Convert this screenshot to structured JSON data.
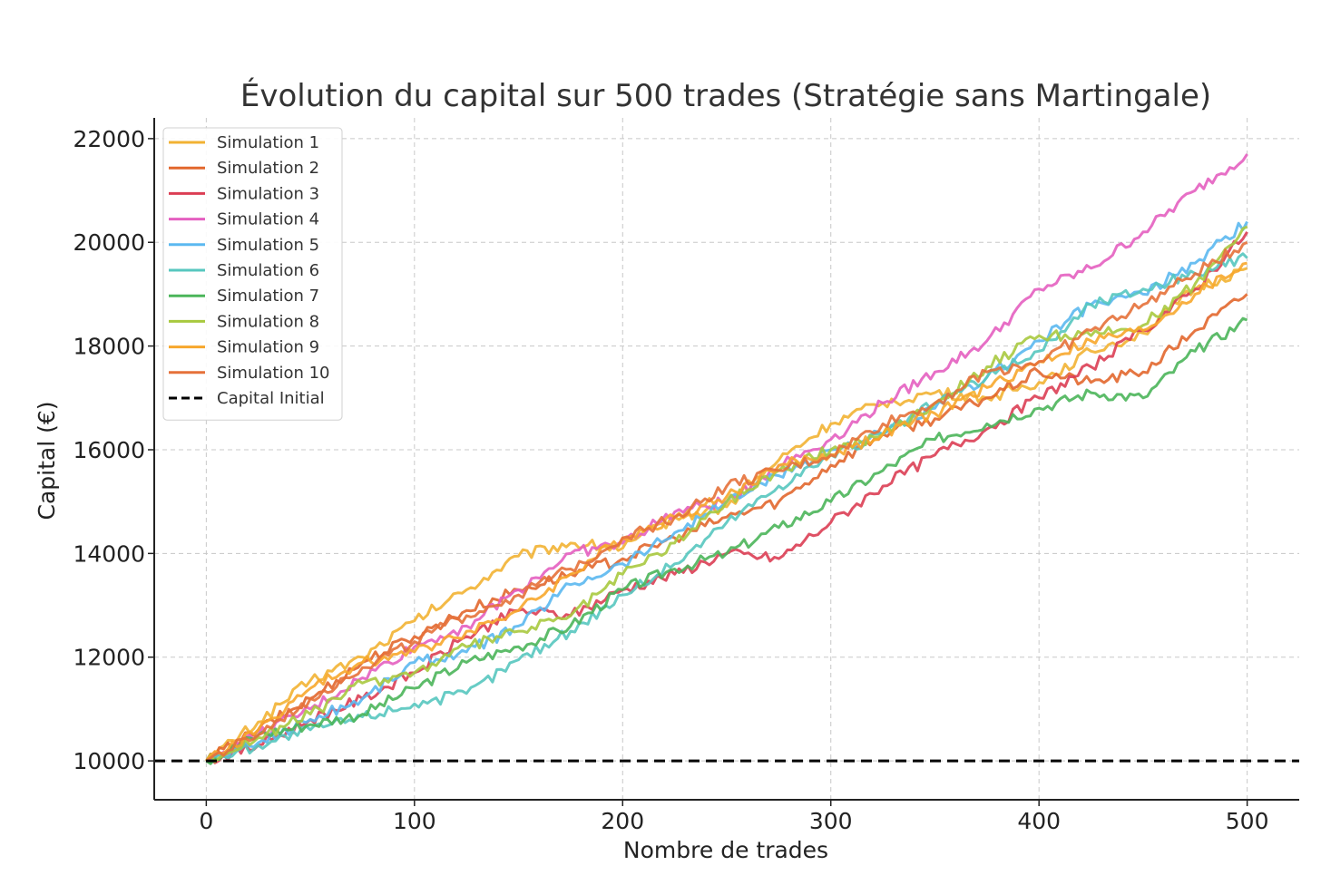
{
  "chart_data": {
    "type": "line",
    "title": "Évolution du capital sur 500 trades (Stratégie sans Martingale)",
    "xlabel": "Nombre de trades",
    "ylabel": "Capital (€)",
    "xlim": [
      -25,
      525
    ],
    "ylim": [
      9250,
      22400
    ],
    "xticks": [
      0,
      100,
      200,
      300,
      400,
      500
    ],
    "yticks": [
      10000,
      12000,
      14000,
      16000,
      18000,
      20000,
      22000
    ],
    "grid": true,
    "legend_position": "top-left",
    "series": [
      {
        "name": "Simulation 1",
        "color": "#F2B233",
        "x": [
          0,
          25,
          50,
          75,
          100,
          125,
          150,
          175,
          200,
          225,
          250,
          275,
          300,
          325,
          350,
          375,
          400,
          425,
          450,
          475,
          500
        ],
        "y": [
          10000,
          10750,
          11550,
          12000,
          12700,
          13300,
          13950,
          14200,
          14100,
          14700,
          14900,
          15800,
          16500,
          16900,
          17100,
          17000,
          17300,
          17900,
          18250,
          19100,
          19500
        ]
      },
      {
        "name": "Simulation 2",
        "color": "#E2672D",
        "x": [
          0,
          25,
          50,
          75,
          100,
          125,
          150,
          175,
          200,
          225,
          250,
          275,
          300,
          325,
          350,
          375,
          400,
          425,
          450,
          475,
          500
        ],
        "y": [
          10000,
          10600,
          11200,
          11900,
          12400,
          12900,
          13300,
          13600,
          13900,
          14300,
          14700,
          15000,
          15700,
          16300,
          16600,
          17000,
          17500,
          17300,
          17500,
          18300,
          19000
        ]
      },
      {
        "name": "Simulation 3",
        "color": "#DB3E54",
        "x": [
          0,
          25,
          50,
          75,
          100,
          125,
          150,
          175,
          200,
          225,
          250,
          275,
          300,
          325,
          350,
          375,
          400,
          425,
          450,
          475,
          500
        ],
        "y": [
          10000,
          10300,
          10800,
          11200,
          11700,
          12400,
          12900,
          12800,
          13300,
          13600,
          14000,
          13900,
          14600,
          15300,
          15900,
          16400,
          17000,
          17600,
          18300,
          19100,
          20200
        ]
      },
      {
        "name": "Simulation 4",
        "color": "#E45FC0",
        "x": [
          0,
          25,
          50,
          75,
          100,
          125,
          150,
          175,
          200,
          225,
          250,
          275,
          300,
          325,
          350,
          375,
          400,
          425,
          450,
          475,
          500
        ],
        "y": [
          10000,
          10500,
          11000,
          11600,
          12200,
          12600,
          13300,
          14000,
          14200,
          14800,
          15000,
          15700,
          16200,
          16900,
          17500,
          18100,
          19100,
          19500,
          20200,
          21000,
          21700
        ]
      },
      {
        "name": "Simulation 5",
        "color": "#5BB8F0",
        "x": [
          0,
          25,
          50,
          75,
          100,
          125,
          150,
          175,
          200,
          225,
          250,
          275,
          300,
          325,
          350,
          375,
          400,
          425,
          450,
          475,
          500
        ],
        "y": [
          10000,
          10350,
          10800,
          11200,
          11900,
          12100,
          12600,
          13400,
          13800,
          14400,
          15000,
          15500,
          16000,
          16300,
          16800,
          17400,
          18100,
          18800,
          19000,
          19600,
          20400
        ]
      },
      {
        "name": "Simulation 6",
        "color": "#57C7BF",
        "x": [
          0,
          25,
          50,
          75,
          100,
          125,
          150,
          175,
          200,
          225,
          250,
          275,
          300,
          325,
          350,
          375,
          400,
          425,
          450,
          475,
          500
        ],
        "y": [
          10000,
          10300,
          10600,
          10850,
          11100,
          11300,
          11950,
          12500,
          13200,
          13800,
          14600,
          15300,
          15900,
          16300,
          16900,
          17400,
          17900,
          18800,
          19100,
          19400,
          19700
        ]
      },
      {
        "name": "Simulation 7",
        "color": "#4BB55A",
        "x": [
          0,
          25,
          50,
          75,
          100,
          125,
          150,
          175,
          200,
          225,
          250,
          275,
          300,
          325,
          350,
          375,
          400,
          425,
          450,
          475,
          500
        ],
        "y": [
          10000,
          10500,
          10700,
          10900,
          11400,
          11900,
          12200,
          12600,
          13300,
          13700,
          14000,
          14500,
          15000,
          15600,
          16200,
          16500,
          16800,
          17100,
          17000,
          17900,
          18500
        ]
      },
      {
        "name": "Simulation 8",
        "color": "#A8C93F",
        "x": [
          0,
          25,
          50,
          75,
          100,
          125,
          150,
          175,
          200,
          225,
          250,
          275,
          300,
          325,
          350,
          375,
          400,
          425,
          450,
          475,
          500
        ],
        "y": [
          10000,
          10450,
          10900,
          11500,
          11700,
          12200,
          12500,
          12800,
          13600,
          14200,
          15000,
          15600,
          16000,
          16300,
          16900,
          17600,
          18200,
          18200,
          18400,
          19200,
          20300
        ]
      },
      {
        "name": "Simulation 9",
        "color": "#F7A72C",
        "x": [
          0,
          25,
          50,
          75,
          100,
          125,
          150,
          175,
          200,
          225,
          250,
          275,
          300,
          325,
          350,
          375,
          400,
          425,
          450,
          475,
          500
        ],
        "y": [
          10000,
          10600,
          11400,
          11900,
          12100,
          12500,
          12900,
          13600,
          14300,
          14700,
          15100,
          15700,
          15900,
          16300,
          16700,
          17200,
          17700,
          18100,
          18300,
          19000,
          19600
        ]
      },
      {
        "name": "Simulation 10",
        "color": "#E5713A",
        "x": [
          0,
          25,
          50,
          75,
          100,
          125,
          150,
          175,
          200,
          225,
          250,
          275,
          300,
          325,
          350,
          375,
          400,
          425,
          450,
          475,
          500
        ],
        "y": [
          10000,
          10500,
          11200,
          11800,
          12300,
          12800,
          13200,
          13700,
          14300,
          14700,
          15300,
          15600,
          15900,
          16500,
          16900,
          17500,
          17700,
          18300,
          18800,
          19400,
          20000
        ]
      },
      {
        "name": "Capital Initial",
        "color": "#000000",
        "dashed": true,
        "x": [
          -25,
          525
        ],
        "y": [
          10000,
          10000
        ]
      }
    ]
  }
}
